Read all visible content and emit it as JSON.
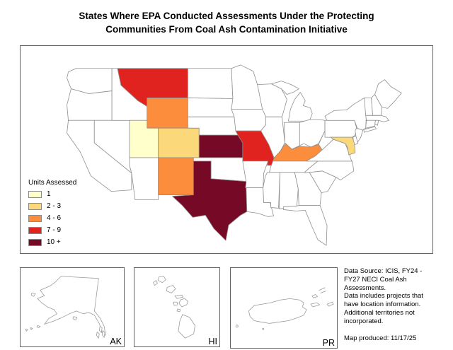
{
  "title": {
    "line1": "States Where EPA Conducted Assessments Under the Protecting",
    "line2": "Communities From Coal Ash Contamination Initiative"
  },
  "legend": {
    "title": "Units Assessed",
    "items": [
      {
        "label": "1",
        "color": "#FFFFCC"
      },
      {
        "label": "2 - 3",
        "color": "#FBD879"
      },
      {
        "label": "4 - 6",
        "color": "#FB8D3D"
      },
      {
        "label": "7 - 9",
        "color": "#E0231E"
      },
      {
        "label": "10 +",
        "color": "#760A26"
      }
    ]
  },
  "map": {
    "states_assessed": [
      {
        "state": "Montana",
        "abbr": "MT",
        "units": "7 - 9"
      },
      {
        "state": "Wyoming",
        "abbr": "WY",
        "units": "4 - 6"
      },
      {
        "state": "Utah",
        "abbr": "UT",
        "units": "1"
      },
      {
        "state": "Colorado",
        "abbr": "CO",
        "units": "2 - 3"
      },
      {
        "state": "New Mexico",
        "abbr": "NM",
        "units": "4 - 6"
      },
      {
        "state": "Kansas",
        "abbr": "KS",
        "units": "10 +"
      },
      {
        "state": "Texas",
        "abbr": "TX",
        "units": "10 +"
      },
      {
        "state": "Missouri",
        "abbr": "MO",
        "units": "7 - 9"
      },
      {
        "state": "Kentucky",
        "abbr": "KY",
        "units": "4 - 6"
      },
      {
        "state": "Maryland",
        "abbr": "MD",
        "units": "2 - 3"
      }
    ]
  },
  "insets": {
    "ak_label": "AK",
    "hi_label": "HI",
    "pr_label": "PR"
  },
  "notes": {
    "data_source": "Data Source: ICIS, FY24 -\nFY27 NECI Coal Ash\nAssessments.\nData includes projects that\nhave location information.\nAdditional territories not\nincorporated.",
    "map_produced": "Map produced: 11/17/25"
  }
}
